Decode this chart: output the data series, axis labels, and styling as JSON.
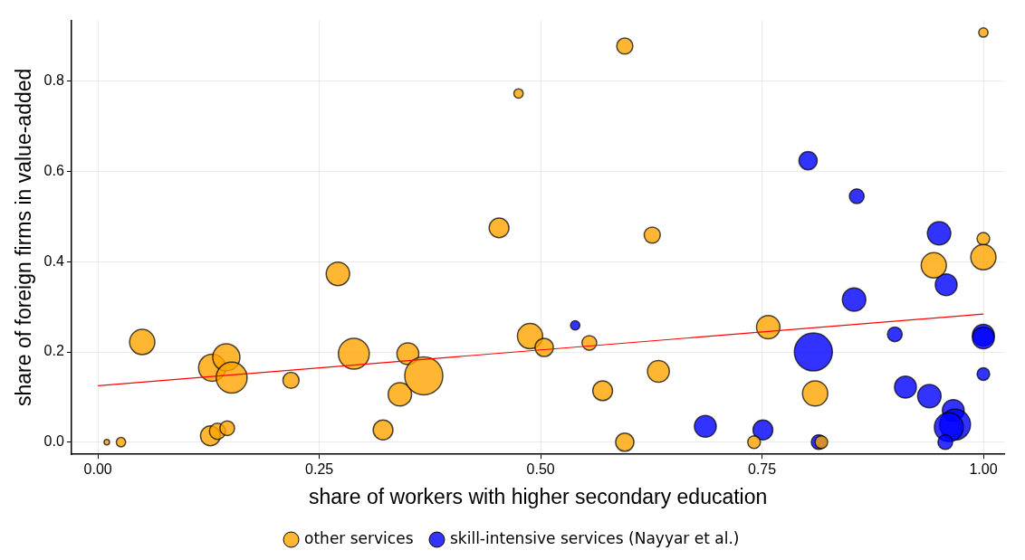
{
  "chart_data": {
    "type": "bubble",
    "xlabel": "share of workers with higher secondary education",
    "ylabel": "share of foreign firms in value-added",
    "xlim": [
      -0.03,
      1.024
    ],
    "ylim": [
      -0.027,
      0.935
    ],
    "xticks": [
      {
        "value": 0,
        "label": "0.00"
      },
      {
        "value": 0.25,
        "label": "0.25"
      },
      {
        "value": 0.5,
        "label": "0.50"
      },
      {
        "value": 0.75,
        "label": "0.75"
      },
      {
        "value": 1,
        "label": "1.00"
      }
    ],
    "yticks": [
      {
        "value": 0,
        "label": "0.0"
      },
      {
        "value": 0.2,
        "label": "0.2"
      },
      {
        "value": 0.4,
        "label": "0.4"
      },
      {
        "value": 0.6,
        "label": "0.6"
      },
      {
        "value": 0.8,
        "label": "0.8"
      }
    ],
    "grid": true,
    "legend": "bottom",
    "marker": "circle",
    "series": [
      {
        "name": "other services",
        "color": "#ffa500",
        "x": [
          0.01,
          0.026,
          0.05,
          0.129,
          0.145,
          0.151,
          0.127,
          0.135,
          0.146,
          0.218,
          0.271,
          0.289,
          0.322,
          0.341,
          0.35,
          0.368,
          0.453,
          0.475,
          0.488,
          0.504,
          0.555,
          0.57,
          0.595,
          0.595,
          0.626,
          0.633,
          0.741,
          0.757,
          0.81,
          0.817,
          0.944,
          1.0,
          1.0,
          1.0
        ],
        "values": [
          0.0,
          0.0,
          0.222,
          0.165,
          0.188,
          0.143,
          0.014,
          0.024,
          0.031,
          0.137,
          0.373,
          0.196,
          0.027,
          0.106,
          0.196,
          0.147,
          0.475,
          0.773,
          0.235,
          0.21,
          0.22,
          0.114,
          0.878,
          0.0,
          0.459,
          0.157,
          0.0,
          0.255,
          0.108,
          0.0,
          0.392,
          0.451,
          0.41,
          0.908
        ],
        "sizes": [
          0.02,
          0.06,
          0.44,
          0.51,
          0.51,
          0.66,
          0.27,
          0.18,
          0.15,
          0.18,
          0.38,
          0.66,
          0.27,
          0.38,
          0.33,
          1.0,
          0.27,
          0.06,
          0.44,
          0.23,
          0.15,
          0.27,
          0.18,
          0.23,
          0.18,
          0.33,
          0.11,
          0.38,
          0.44,
          0.11,
          0.44,
          0.11,
          0.44,
          0.06
        ]
      },
      {
        "name": "skill-intensive services (Nayyar et al.)",
        "color": "#0000ff",
        "x": [
          0.802,
          0.857,
          0.95,
          0.958,
          0.854,
          0.9,
          1.0,
          1.0,
          0.808,
          1.0,
          0.912,
          0.939,
          0.966,
          0.968,
          0.961,
          0.957,
          0.686,
          0.751,
          0.814,
          0.539
        ],
        "values": [
          0.624,
          0.545,
          0.463,
          0.349,
          0.316,
          0.239,
          0.237,
          0.231,
          0.2,
          0.151,
          0.122,
          0.102,
          0.07,
          0.039,
          0.033,
          0.0,
          0.035,
          0.027,
          0.0,
          0.259
        ],
        "sizes": [
          0.23,
          0.15,
          0.38,
          0.33,
          0.38,
          0.15,
          0.33,
          0.33,
          1.0,
          0.11,
          0.33,
          0.38,
          0.33,
          0.66,
          0.58,
          0.15,
          0.33,
          0.27,
          0.15,
          0.06
        ]
      },
      {
        "type": "line",
        "marker": "none",
        "color": "#ff0000",
        "x": [
          0,
          1
        ],
        "values": [
          0.125,
          0.284
        ]
      }
    ]
  }
}
